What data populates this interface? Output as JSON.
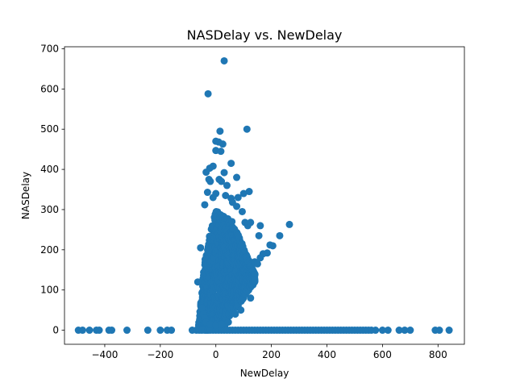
{
  "chart_data": {
    "type": "scatter",
    "title": "NASDelay vs. NewDelay",
    "xlabel": "NewDelay",
    "ylabel": "NASDelay",
    "xlim": [
      -545,
      895
    ],
    "ylim": [
      -35,
      705
    ],
    "xticks": [
      -400,
      -200,
      0,
      200,
      400,
      600,
      800
    ],
    "yticks": [
      0,
      100,
      200,
      300,
      400,
      500,
      600,
      700
    ],
    "grid": false,
    "marker_color": "#1f77b4",
    "series": [
      {
        "points": [
          [
            -495,
            0
          ],
          [
            -480,
            0
          ],
          [
            -455,
            0
          ],
          [
            -430,
            0
          ],
          [
            -420,
            0
          ],
          [
            -385,
            0
          ],
          [
            -375,
            0
          ],
          [
            -320,
            0
          ],
          [
            -245,
            0
          ],
          [
            -200,
            0
          ],
          [
            -175,
            0
          ],
          [
            -160,
            0
          ],
          [
            -85,
            0
          ],
          [
            -70,
            0
          ],
          [
            -60,
            0
          ],
          [
            -50,
            0
          ],
          [
            -40,
            0
          ],
          [
            -30,
            0
          ],
          [
            -20,
            0
          ],
          [
            -10,
            0
          ],
          [
            0,
            0
          ],
          [
            10,
            0
          ],
          [
            20,
            0
          ],
          [
            30,
            0
          ],
          [
            40,
            0
          ],
          [
            50,
            0
          ],
          [
            60,
            0
          ],
          [
            70,
            0
          ],
          [
            80,
            0
          ],
          [
            90,
            0
          ],
          [
            100,
            0
          ],
          [
            110,
            0
          ],
          [
            120,
            0
          ],
          [
            130,
            0
          ],
          [
            140,
            0
          ],
          [
            150,
            0
          ],
          [
            160,
            0
          ],
          [
            170,
            0
          ],
          [
            180,
            0
          ],
          [
            190,
            0
          ],
          [
            200,
            0
          ],
          [
            210,
            0
          ],
          [
            220,
            0
          ],
          [
            230,
            0
          ],
          [
            240,
            0
          ],
          [
            250,
            0
          ],
          [
            260,
            0
          ],
          [
            270,
            0
          ],
          [
            280,
            0
          ],
          [
            290,
            0
          ],
          [
            300,
            0
          ],
          [
            310,
            0
          ],
          [
            320,
            0
          ],
          [
            330,
            0
          ],
          [
            340,
            0
          ],
          [
            350,
            0
          ],
          [
            360,
            0
          ],
          [
            370,
            0
          ],
          [
            380,
            0
          ],
          [
            390,
            0
          ],
          [
            400,
            0
          ],
          [
            410,
            0
          ],
          [
            420,
            0
          ],
          [
            430,
            0
          ],
          [
            440,
            0
          ],
          [
            450,
            0
          ],
          [
            460,
            0
          ],
          [
            470,
            0
          ],
          [
            480,
            0
          ],
          [
            490,
            0
          ],
          [
            500,
            0
          ],
          [
            510,
            0
          ],
          [
            520,
            0
          ],
          [
            530,
            0
          ],
          [
            540,
            0
          ],
          [
            550,
            0
          ],
          [
            560,
            0
          ],
          [
            575,
            0
          ],
          [
            600,
            0
          ],
          [
            620,
            0
          ],
          [
            660,
            0
          ],
          [
            680,
            0
          ],
          [
            700,
            0
          ],
          [
            790,
            0
          ],
          [
            805,
            0
          ],
          [
            840,
            0
          ],
          [
            -28,
            588
          ],
          [
            30,
            670
          ],
          [
            15,
            495
          ],
          [
            112,
            500
          ],
          [
            0,
            470
          ],
          [
            10,
            468
          ],
          [
            25,
            463
          ],
          [
            0,
            447
          ],
          [
            18,
            445
          ],
          [
            55,
            415
          ],
          [
            -10,
            408
          ],
          [
            -22,
            403
          ],
          [
            -35,
            393
          ],
          [
            30,
            392
          ],
          [
            75,
            380
          ],
          [
            -25,
            375
          ],
          [
            12,
            375
          ],
          [
            -20,
            370
          ],
          [
            20,
            370
          ],
          [
            40,
            360
          ],
          [
            -30,
            343
          ],
          [
            100,
            340
          ],
          [
            0,
            340
          ],
          [
            120,
            345
          ],
          [
            35,
            335
          ],
          [
            55,
            328
          ],
          [
            -10,
            330
          ],
          [
            80,
            330
          ],
          [
            60,
            318
          ],
          [
            -40,
            312
          ],
          [
            75,
            308
          ],
          [
            95,
            295
          ],
          [
            105,
            268
          ],
          [
            115,
            260
          ],
          [
            125,
            268
          ],
          [
            160,
            260
          ],
          [
            195,
            212
          ],
          [
            155,
            235
          ],
          [
            265,
            263
          ],
          [
            230,
            235
          ],
          [
            205,
            210
          ],
          [
            170,
            190
          ],
          [
            160,
            180
          ],
          [
            140,
            170
          ],
          [
            150,
            165
          ],
          [
            185,
            192
          ],
          [
            125,
            80
          ],
          [
            -55,
            205
          ],
          [
            -65,
            120
          ],
          [
            -50,
            55
          ],
          [
            -45,
            40
          ],
          [
            -40,
            30
          ],
          [
            -35,
            20
          ],
          [
            -20,
            15
          ],
          [
            0,
            12
          ],
          [
            20,
            15
          ],
          [
            45,
            20
          ],
          [
            70,
            40
          ],
          [
            90,
            50
          ]
        ],
        "dense_region": {
          "x_start": -60,
          "x_end": 140,
          "points_per_column": 22,
          "column_step": 3.5
        }
      }
    ]
  }
}
